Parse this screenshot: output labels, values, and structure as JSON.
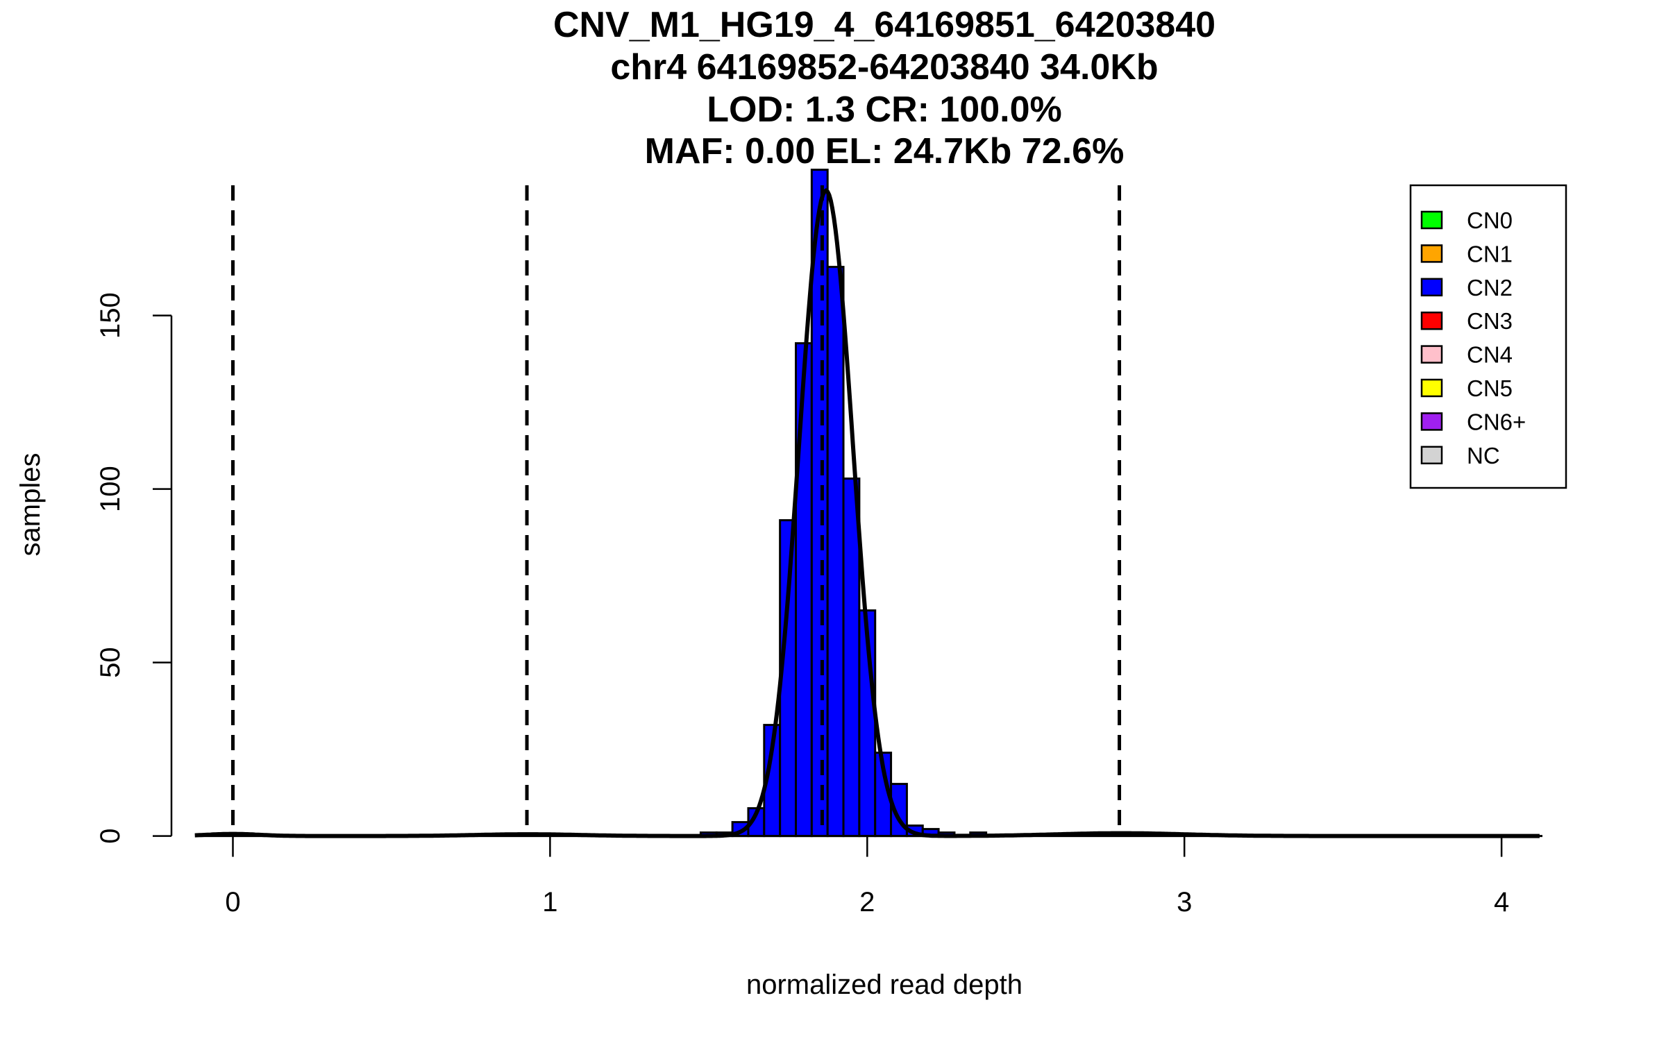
{
  "chart_data": {
    "type": "bar",
    "title_lines": [
      "CNV_M1_HG19_4_64169851_64203840",
      "chr4 64169852-64203840 34.0Kb",
      "LOD: 1.3 CR: 100.0%",
      "MAF: 0.00 EL: 24.7Kb 72.6%"
    ],
    "xlabel": "normalized read depth",
    "ylabel": "samples",
    "xlim": [
      -0.12,
      4.12
    ],
    "ylim": [
      0,
      192
    ],
    "x_ticks": [
      0,
      1,
      2,
      3,
      4
    ],
    "y_ticks": [
      0,
      50,
      100,
      150
    ],
    "histogram": {
      "bin_start": 1.475,
      "bin_width": 0.05,
      "counts": [
        1,
        1,
        4,
        8,
        32,
        91,
        142,
        192,
        164,
        103,
        65,
        24,
        15,
        3,
        2,
        1,
        0,
        1
      ],
      "color": "#0000FF"
    },
    "dashed_lines_x": [
      0,
      0.927,
      1.858,
      2.795
    ],
    "density_components": [
      {
        "mean": 1.87,
        "sd": 0.085,
        "peak": 186
      },
      {
        "mean": 0.0,
        "sd": 0.08,
        "peak": 0.6
      },
      {
        "mean": 0.93,
        "sd": 0.16,
        "peak": 0.5
      },
      {
        "mean": 2.8,
        "sd": 0.2,
        "peak": 0.8
      }
    ],
    "legend": {
      "placement": "top-right",
      "entries": [
        {
          "label": "CN0",
          "color": "#00FF00"
        },
        {
          "label": "CN1",
          "color": "#FFA500"
        },
        {
          "label": "CN2",
          "color": "#0000FF"
        },
        {
          "label": "CN3",
          "color": "#FF0000"
        },
        {
          "label": "CN4",
          "color": "#FFC0CB"
        },
        {
          "label": "CN5",
          "color": "#FFFF00"
        },
        {
          "label": "CN6+",
          "color": "#A020F0"
        },
        {
          "label": "NC",
          "color": "#D3D3D3"
        }
      ]
    }
  }
}
